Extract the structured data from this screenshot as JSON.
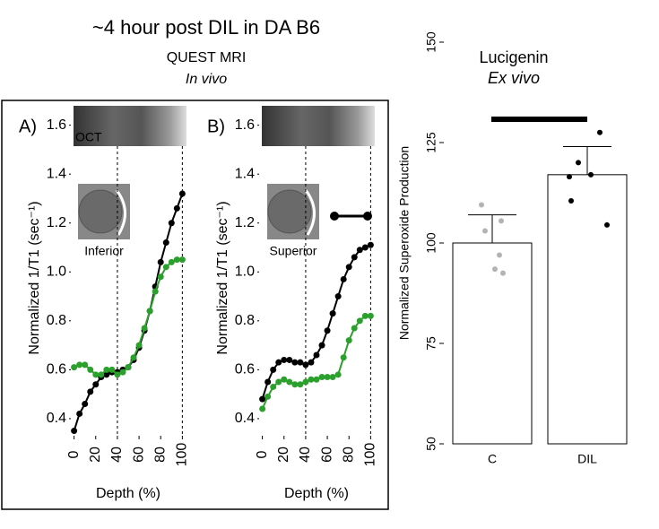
{
  "header": {
    "title": "~4 hour post DIL in DA B6",
    "method": "QUEST MRI",
    "condition": "In vivo"
  },
  "chart_data": [
    {
      "type": "line",
      "panel_label": "A)",
      "x_label": "Depth (%)",
      "y_label": "Normalized 1/T1 (sec⁻¹)",
      "annotations": [
        "OCT",
        "Inferior"
      ],
      "xlim": [
        -3,
        103
      ],
      "xticks": [
        0,
        20,
        40,
        60,
        80,
        100
      ],
      "vlines": [
        40,
        100
      ],
      "ylim": [
        0.33,
        1.65
      ],
      "yticks": [
        {
          "value": 0.4,
          "label": "0.4"
        },
        {
          "value": 0.6,
          "label": "0.6"
        },
        {
          "value": 0.8,
          "label": "0.8"
        },
        {
          "value": 1.0,
          "label": "1.0"
        },
        {
          "value": 1.2,
          "label": "1.2"
        },
        {
          "value": 1.4,
          "label": "1.4"
        },
        {
          "value": 1.6,
          "label": "1.6"
        }
      ],
      "x": [
        0,
        5,
        10,
        15,
        20,
        25,
        30,
        35,
        40,
        45,
        50,
        55,
        60,
        65,
        70,
        75,
        80,
        85,
        90,
        95,
        100
      ],
      "series": [
        {
          "color": "#000000",
          "values": [
            0.35,
            0.42,
            0.46,
            0.51,
            0.54,
            0.57,
            0.58,
            0.59,
            0.59,
            0.6,
            0.61,
            0.64,
            0.69,
            0.76,
            0.84,
            0.94,
            1.04,
            1.12,
            1.2,
            1.26,
            1.32
          ]
        },
        {
          "color": "#2ca02c",
          "values": [
            0.61,
            0.62,
            0.62,
            0.6,
            0.58,
            0.58,
            0.6,
            0.6,
            0.58,
            0.59,
            0.61,
            0.65,
            0.7,
            0.77,
            0.84,
            0.92,
            0.98,
            1.02,
            1.04,
            1.05,
            1.05
          ]
        }
      ]
    },
    {
      "type": "line",
      "panel_label": "B)",
      "x_label": "Depth (%)",
      "y_label": "Normalized 1/T1 (sec⁻¹)",
      "annotations": [
        "Superior"
      ],
      "xlim": [
        -3,
        103
      ],
      "xticks": [
        0,
        20,
        40,
        60,
        80,
        100
      ],
      "vlines": [
        40,
        100
      ],
      "ylim": [
        0.33,
        1.65
      ],
      "yticks": [
        {
          "value": 0.4,
          "label": "0.4"
        },
        {
          "value": 0.6,
          "label": "0.6"
        },
        {
          "value": 0.8,
          "label": "0.8"
        },
        {
          "value": 1.0,
          "label": "1.0"
        },
        {
          "value": 1.2,
          "label": "1.2"
        },
        {
          "value": 1.4,
          "label": "1.4"
        },
        {
          "value": 1.6,
          "label": "1.6"
        }
      ],
      "x": [
        0,
        5,
        10,
        15,
        20,
        25,
        30,
        35,
        40,
        45,
        50,
        55,
        60,
        65,
        70,
        75,
        80,
        85,
        90,
        95,
        100
      ],
      "series": [
        {
          "color": "#000000",
          "values": [
            0.48,
            0.55,
            0.6,
            0.63,
            0.64,
            0.64,
            0.63,
            0.63,
            0.62,
            0.63,
            0.66,
            0.7,
            0.76,
            0.83,
            0.9,
            0.97,
            1.02,
            1.06,
            1.09,
            1.1,
            1.11
          ]
        },
        {
          "color": "#2ca02c",
          "values": [
            0.44,
            0.49,
            0.53,
            0.55,
            0.56,
            0.55,
            0.54,
            0.54,
            0.55,
            0.56,
            0.56,
            0.57,
            0.57,
            0.57,
            0.58,
            0.65,
            0.72,
            0.77,
            0.8,
            0.82,
            0.82
          ]
        }
      ]
    },
    {
      "type": "bar",
      "title": "Lucigenin",
      "subtitle": "Ex vivo",
      "y_label": "Normalized Superoxide Production",
      "categories": [
        "C",
        "DIL"
      ],
      "values": [
        100,
        117
      ],
      "errors": [
        7,
        7
      ],
      "points": [
        [
          109.5,
          105.5,
          103,
          97,
          93.5,
          92.5
        ],
        [
          127.5,
          120,
          117,
          116.5,
          110.5,
          104.5
        ]
      ],
      "point_colors": [
        "#b3b3b3",
        "#000000"
      ],
      "ylim": [
        50,
        150
      ],
      "yticks": [
        50,
        75,
        100,
        125,
        150
      ]
    }
  ]
}
